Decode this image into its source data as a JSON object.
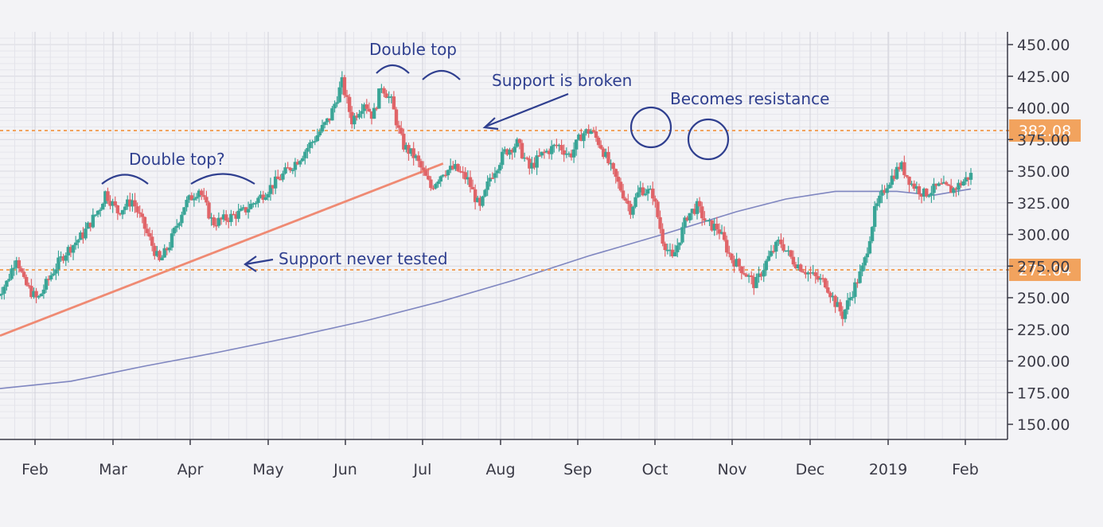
{
  "chart_data": {
    "type": "candlestick",
    "title": "",
    "x_ticks": [
      "Feb",
      "Mar",
      "Apr",
      "May",
      "Jun",
      "Jul",
      "Aug",
      "Sep",
      "Oct",
      "Nov",
      "Dec",
      "2019",
      "Feb"
    ],
    "y_ticks": [
      "450.00",
      "425.00",
      "400.00",
      "375.00",
      "350.00",
      "325.00",
      "300.00",
      "275.00",
      "250.00",
      "225.00",
      "200.00",
      "175.00",
      "150.00"
    ],
    "ylim": [
      143,
      455
    ],
    "grid": true,
    "price_path_monthly": [
      {
        "month": "Jan 2018",
        "approx_close": 255
      },
      {
        "month": "Feb 2018",
        "approx_close": 262
      },
      {
        "month": "Mar 2018",
        "approx_close": 320
      },
      {
        "month": "Apr 2018",
        "approx_close": 300
      },
      {
        "month": "May 2018",
        "approx_close": 330
      },
      {
        "month": "Jun 2018",
        "approx_close": 385
      },
      {
        "month": "Jul 2018",
        "approx_close": 360
      },
      {
        "month": "Aug 2018",
        "approx_close": 335
      },
      {
        "month": "Sep 2018",
        "approx_close": 360
      },
      {
        "month": "Oct 2018",
        "approx_close": 340
      },
      {
        "month": "Nov 2018",
        "approx_close": 310
      },
      {
        "month": "Dec 2018",
        "approx_close": 255
      },
      {
        "month": "Jan 2019",
        "approx_close": 330
      },
      {
        "month": "Feb 2019",
        "approx_close": 350
      }
    ],
    "horizontal_levels": [
      {
        "label": "382.08",
        "value": 382.08,
        "color": "#f2a35e"
      },
      {
        "label": "272.04",
        "value": 272.04,
        "color": "#f2a35e"
      }
    ],
    "moving_average_color": "#7f86c0",
    "trendline_color": "#ef8a73",
    "up_color": "#3aa597",
    "down_color": "#e06468"
  },
  "annotations": {
    "double_top_q": "Double top?",
    "double_top": "Double top",
    "support_broken": "Support is broken",
    "becomes_resistance": "Becomes resistance",
    "support_never_tested": "Support never tested"
  }
}
